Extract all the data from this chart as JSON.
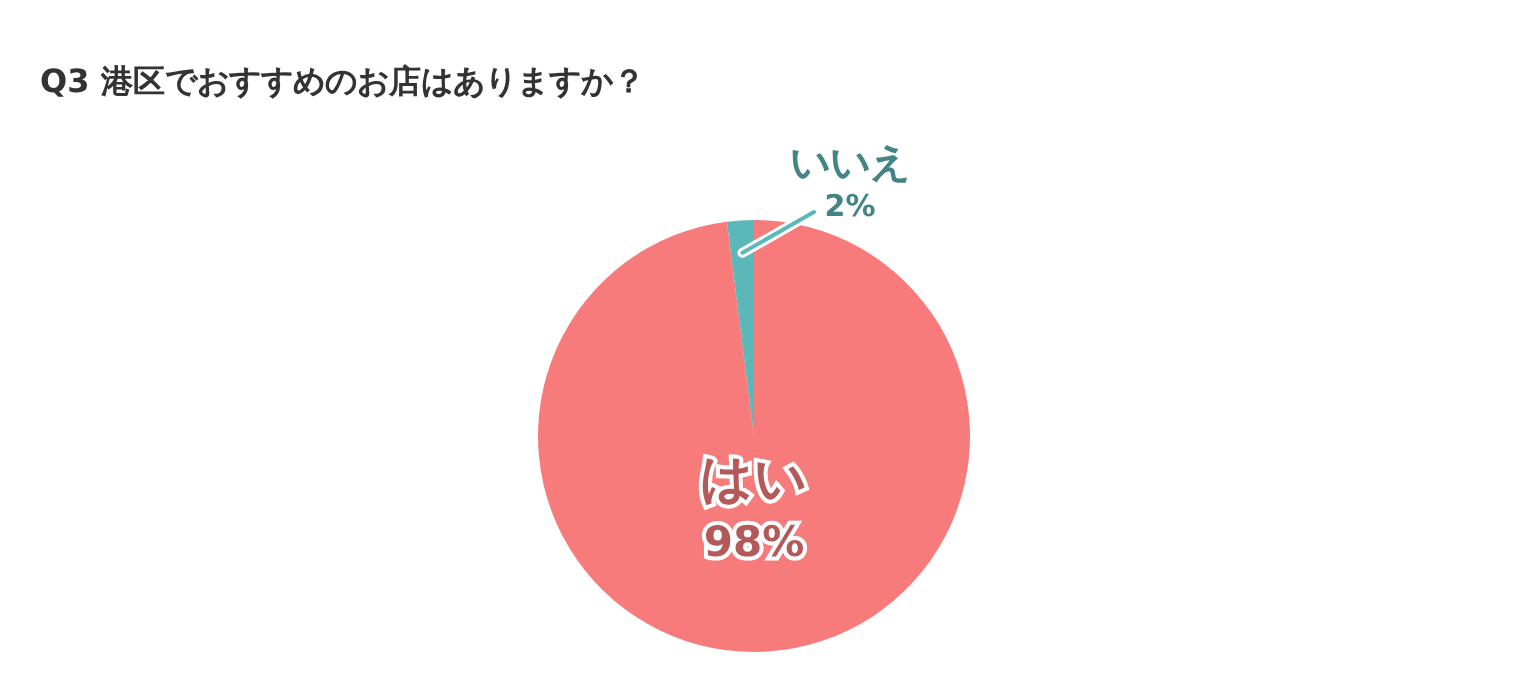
{
  "chart_data": {
    "type": "pie",
    "title": "Q3 港区でおすすめのお店はありますか？",
    "categories": [
      "はい",
      "いいえ"
    ],
    "values": [
      98,
      2
    ],
    "value_labels": [
      "98%",
      "2%"
    ],
    "colors": [
      "#f77b7b",
      "#5cb8b8"
    ],
    "legend": false
  }
}
